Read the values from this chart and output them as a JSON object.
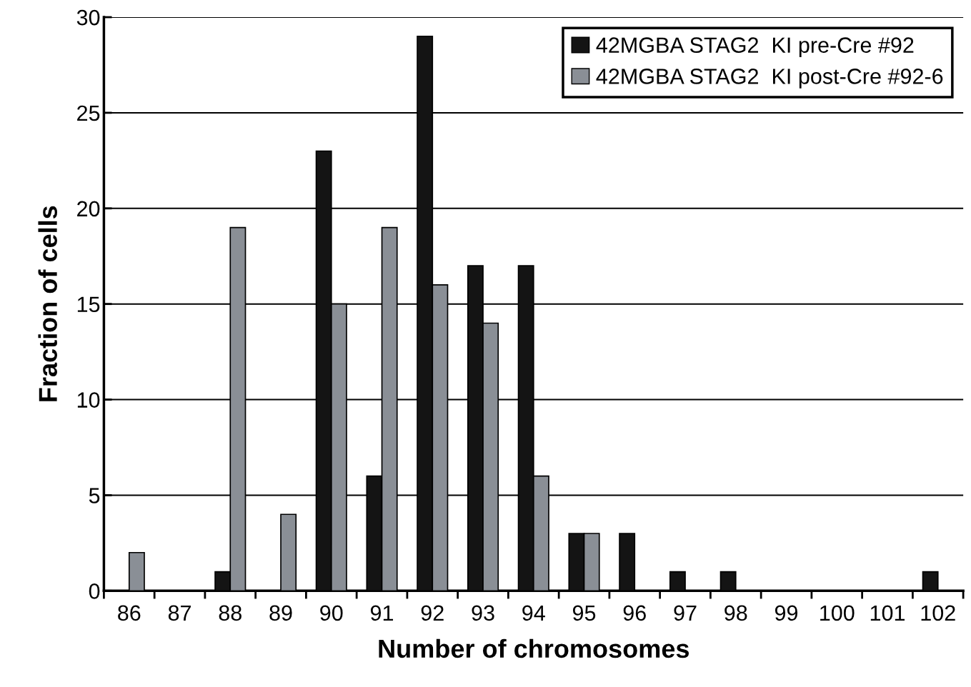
{
  "chart_data": {
    "type": "bar",
    "xlabel": "Number of chromosomes",
    "ylabel": "Fraction of cells",
    "categories": [
      "86",
      "87",
      "88",
      "89",
      "90",
      "91",
      "92",
      "93",
      "94",
      "95",
      "96",
      "97",
      "98",
      "99",
      "100",
      "101",
      "102"
    ],
    "series": [
      {
        "name": "42MGBA STAG2  KI pre-Cre #92",
        "color": "#141414",
        "values": [
          0,
          0,
          1,
          0,
          23,
          6,
          29,
          17,
          17,
          3,
          3,
          1,
          1,
          0,
          0,
          0,
          1
        ]
      },
      {
        "name": "42MGBA STAG2  KI post-Cre #92-6",
        "color": "#8a8f96",
        "values": [
          2,
          0,
          19,
          4,
          15,
          19,
          16,
          14,
          6,
          3,
          0,
          0,
          0,
          0,
          0,
          0,
          0
        ]
      }
    ],
    "ylim": [
      0,
      30
    ],
    "yticks": [
      0,
      5,
      10,
      15,
      20,
      25,
      30
    ],
    "grid": "y",
    "legend": "top right"
  }
}
